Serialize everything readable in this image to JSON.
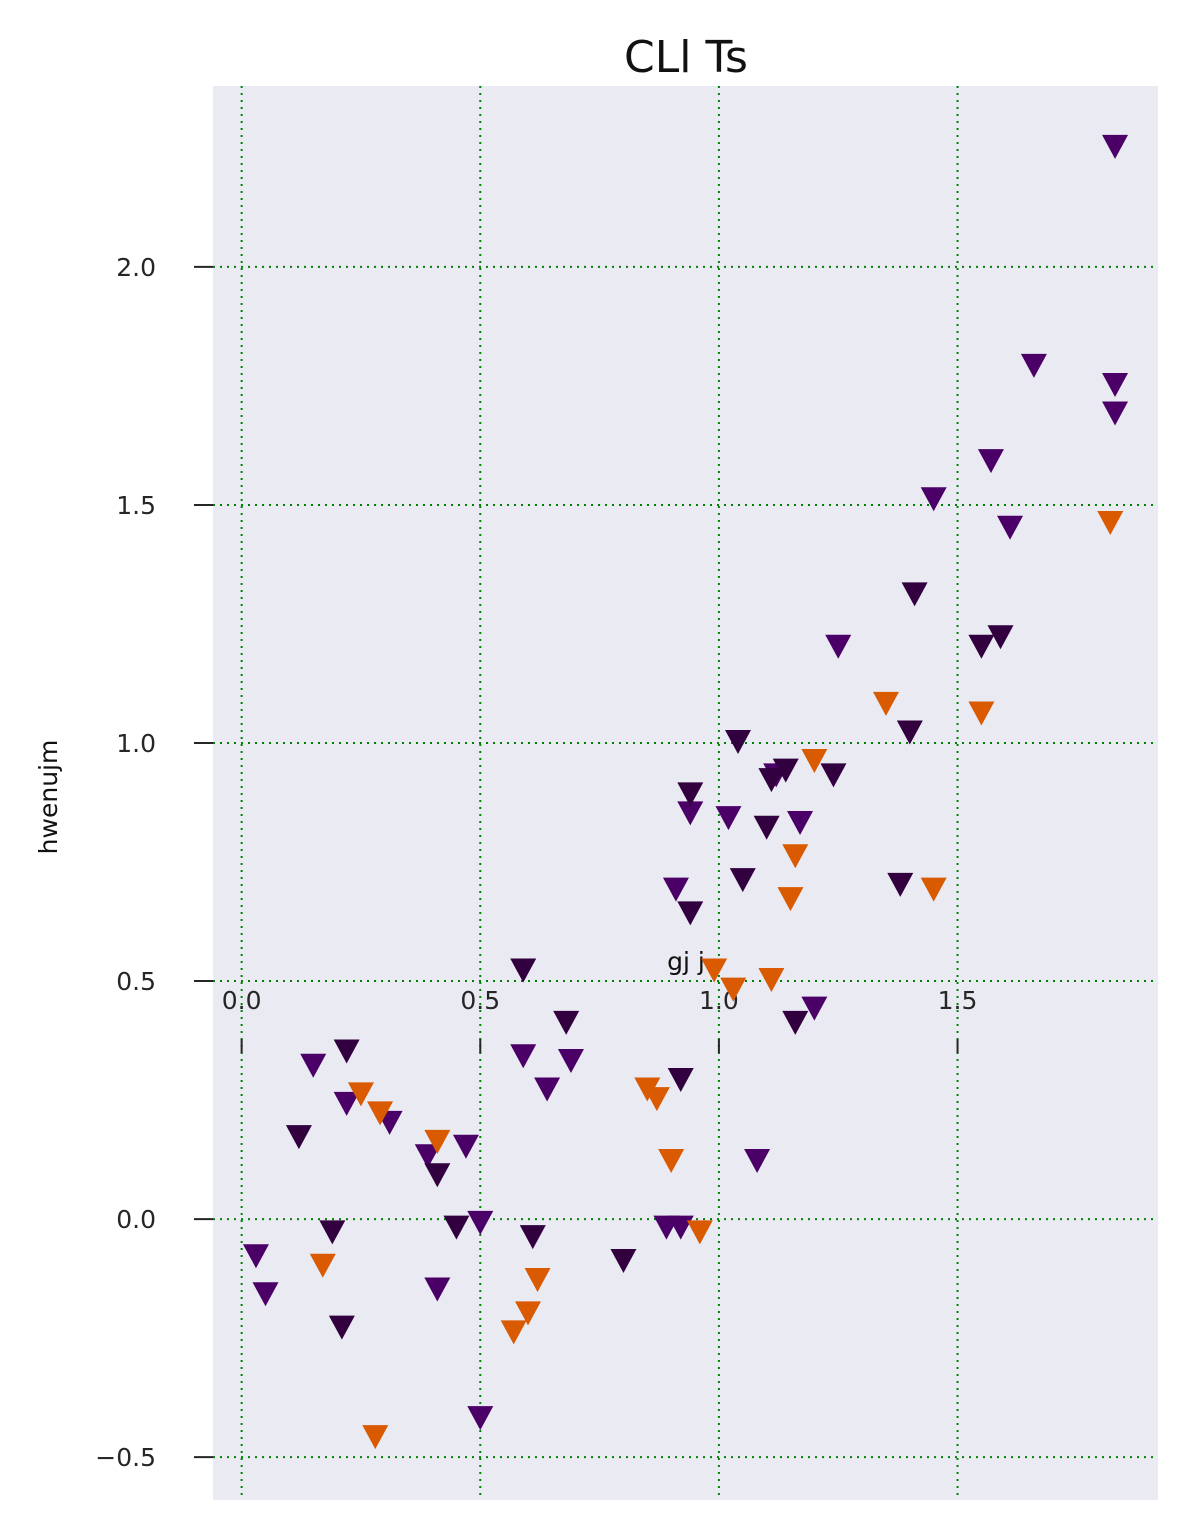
{
  "chart_data": {
    "type": "scatter",
    "title": "CLl Ts",
    "xlabel": "gj j",
    "ylabel": "hwenujm",
    "xlim": [
      -0.06,
      1.92
    ],
    "ylim": [
      -0.59,
      2.38
    ],
    "xticks": [
      0.0,
      0.5,
      1.0,
      1.5
    ],
    "xtick_labels": [
      "0.0",
      "0.5",
      "1.0",
      "1.5"
    ],
    "yticks": [
      -0.5,
      0.0,
      0.5,
      1.0,
      1.5,
      2.0
    ],
    "ytick_labels": [
      "−0.5",
      "0.0",
      "0.5",
      "1.0",
      "1.5",
      "2.0"
    ],
    "x_axis_position_y": 0.5,
    "grid": true,
    "marker": "triangle-down",
    "background": "#eaeaf2",
    "grid_color": "#008000",
    "series": [
      {
        "color": "#4b0068",
        "points": [
          [
            0.03,
            -0.08
          ],
          [
            0.05,
            -0.16
          ],
          [
            0.15,
            0.32
          ],
          [
            0.22,
            0.24
          ],
          [
            0.31,
            0.2
          ],
          [
            0.39,
            0.13
          ],
          [
            0.41,
            -0.15
          ],
          [
            0.47,
            0.15
          ],
          [
            0.5,
            -0.01
          ],
          [
            0.5,
            -0.42
          ],
          [
            0.59,
            0.34
          ],
          [
            0.64,
            0.27
          ],
          [
            0.69,
            0.33
          ],
          [
            0.91,
            0.69
          ],
          [
            0.94,
            0.85
          ],
          [
            1.02,
            0.84
          ],
          [
            1.08,
            0.12
          ],
          [
            1.12,
            0.93
          ],
          [
            1.17,
            0.83
          ],
          [
            1.2,
            0.44
          ],
          [
            1.25,
            1.2
          ],
          [
            1.45,
            1.51
          ],
          [
            1.57,
            1.59
          ],
          [
            1.61,
            1.45
          ],
          [
            1.66,
            1.79
          ],
          [
            1.83,
            2.25
          ],
          [
            1.83,
            1.75
          ],
          [
            1.83,
            1.69
          ],
          [
            0.89,
            -0.02
          ],
          [
            0.92,
            -0.02
          ]
        ]
      },
      {
        "color": "#32003f",
        "points": [
          [
            0.12,
            0.17
          ],
          [
            0.19,
            -0.03
          ],
          [
            0.21,
            -0.23
          ],
          [
            0.22,
            0.35
          ],
          [
            0.41,
            0.09
          ],
          [
            0.45,
            -0.02
          ],
          [
            0.59,
            0.52
          ],
          [
            0.61,
            -0.04
          ],
          [
            0.68,
            0.41
          ],
          [
            0.8,
            -0.09
          ],
          [
            0.92,
            0.29
          ],
          [
            0.94,
            0.89
          ],
          [
            0.94,
            0.64
          ],
          [
            1.04,
            1.0
          ],
          [
            1.05,
            0.71
          ],
          [
            1.1,
            0.82
          ],
          [
            1.11,
            0.92
          ],
          [
            1.14,
            0.94
          ],
          [
            1.16,
            0.41
          ],
          [
            1.24,
            0.93
          ],
          [
            1.38,
            0.7
          ],
          [
            1.4,
            1.02
          ],
          [
            1.41,
            1.31
          ],
          [
            1.55,
            1.2
          ],
          [
            1.59,
            1.22
          ]
        ]
      },
      {
        "color": "#d95a00",
        "points": [
          [
            0.17,
            -0.1
          ],
          [
            0.25,
            0.26
          ],
          [
            0.28,
            -0.46
          ],
          [
            0.29,
            0.22
          ],
          [
            0.41,
            0.16
          ],
          [
            0.57,
            -0.24
          ],
          [
            0.6,
            -0.2
          ],
          [
            0.62,
            -0.13
          ],
          [
            0.85,
            0.27
          ],
          [
            0.87,
            0.25
          ],
          [
            0.9,
            0.12
          ],
          [
            0.96,
            -0.03
          ],
          [
            0.99,
            0.52
          ],
          [
            1.03,
            0.48
          ],
          [
            1.11,
            0.5
          ],
          [
            1.15,
            0.67
          ],
          [
            1.16,
            0.76
          ],
          [
            1.2,
            0.96
          ],
          [
            1.35,
            1.08
          ],
          [
            1.45,
            0.69
          ],
          [
            1.55,
            1.06
          ],
          [
            1.82,
            1.46
          ]
        ]
      }
    ]
  }
}
